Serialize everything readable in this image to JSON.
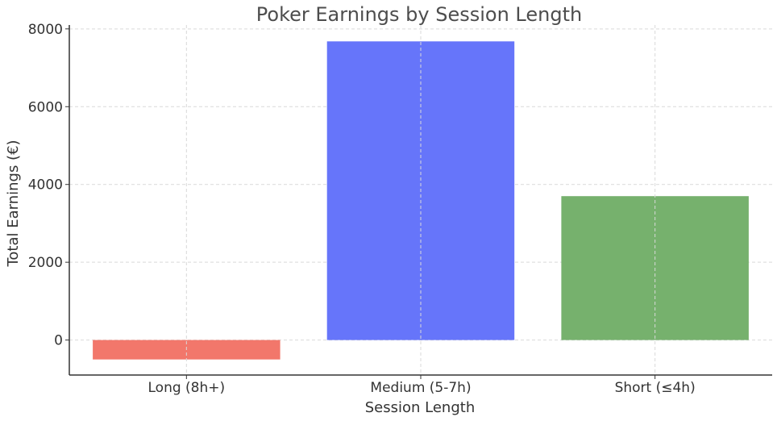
{
  "chart_data": {
    "type": "bar",
    "title": "Poker Earnings by Session Length",
    "xlabel": "Session Length",
    "ylabel": "Total Earnings (€)",
    "categories": [
      "Long (8h+)",
      "Medium (5-7h)",
      "Short (≤4h)"
    ],
    "values": [
      -500,
      7680,
      3700
    ],
    "colors": [
      "#f2776b",
      "#6675fa",
      "#76b16d"
    ],
    "ylim": [
      -900,
      8100
    ],
    "yticks": [
      0,
      2000,
      4000,
      6000,
      8000
    ],
    "grid": true,
    "legend": "none"
  }
}
